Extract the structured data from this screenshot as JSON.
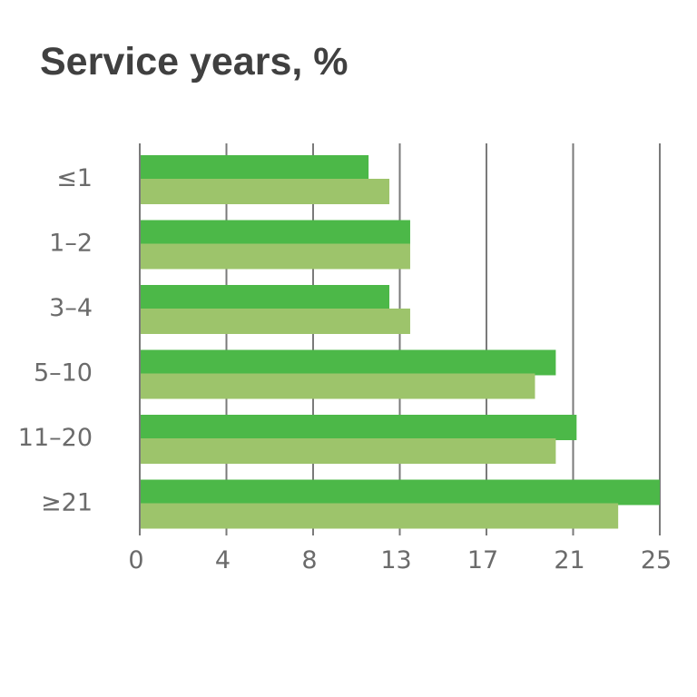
{
  "chart_data": {
    "type": "bar",
    "orientation": "horizontal",
    "title": "Service years, %",
    "categories": [
      "≤1",
      "1–2",
      "3–4",
      "5–10",
      "11–20",
      "≥21"
    ],
    "series": [
      {
        "values": [
          11,
          13,
          12,
          20,
          21,
          25
        ],
        "color": "#4cb848"
      },
      {
        "values": [
          12,
          13,
          13,
          19,
          20,
          23
        ],
        "color": "#9dc46b"
      }
    ],
    "x_ticks": [
      "0",
      "4",
      "8",
      "13",
      "17",
      "21",
      "25"
    ],
    "xlim": [
      0,
      25
    ],
    "grid": true,
    "xlabel": "",
    "ylabel": ""
  }
}
